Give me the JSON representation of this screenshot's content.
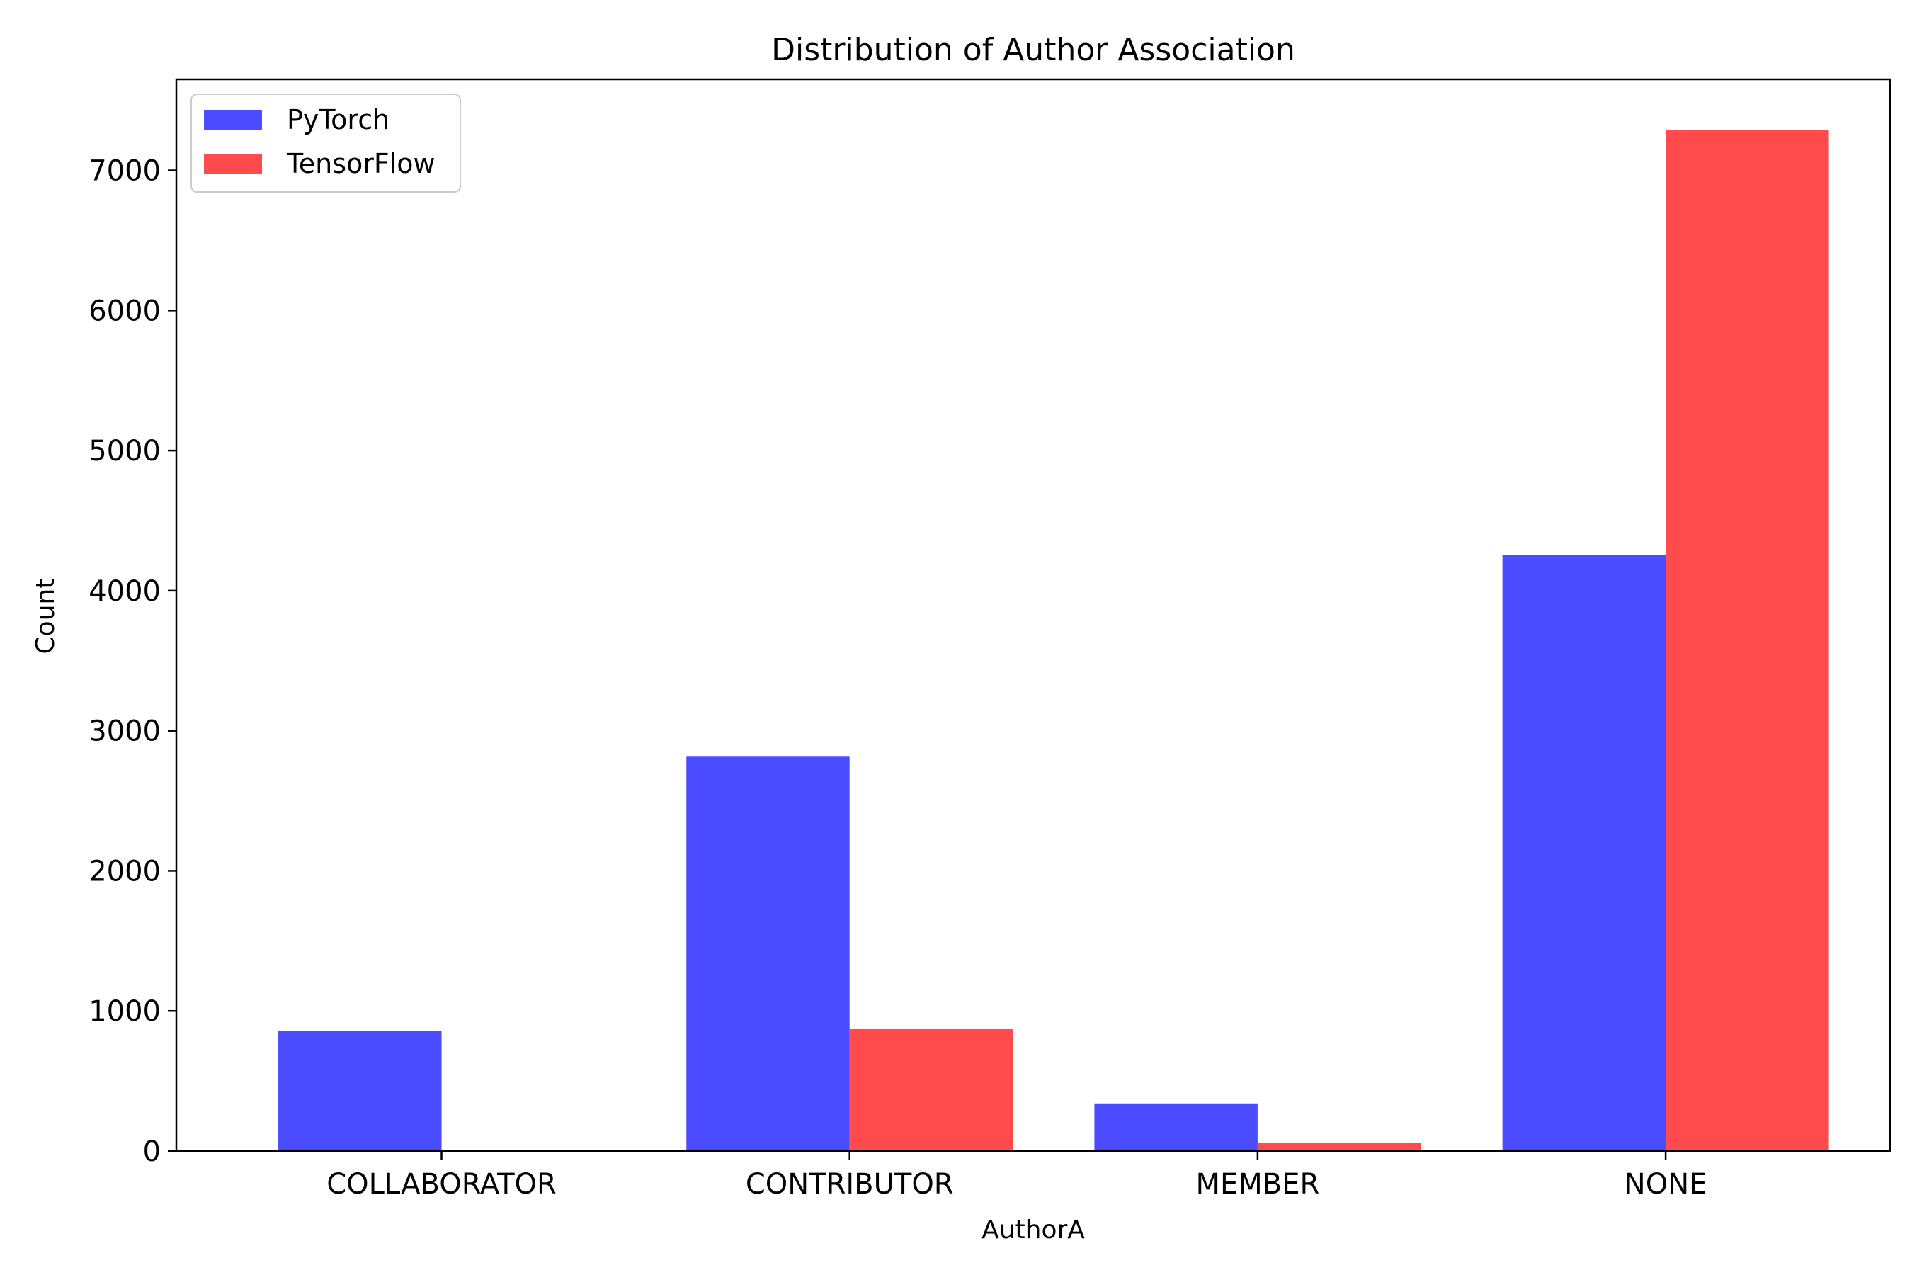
{
  "chart_data": {
    "type": "bar",
    "title": "Distribution of Author Association",
    "xlabel": "AuthorA",
    "ylabel": "Count",
    "categories": [
      "COLLABORATOR",
      "CONTRIBUTOR",
      "MEMBER",
      "NONE"
    ],
    "series": [
      {
        "name": "PyTorch",
        "color": "#4b4bff",
        "values": [
          855,
          2820,
          340,
          4255
        ]
      },
      {
        "name": "TensorFlow",
        "color": "#ff4b4b",
        "values": [
          0,
          870,
          60,
          7290
        ]
      }
    ],
    "ylim": [
      0,
      7650
    ],
    "yticks": [
      0,
      1000,
      2000,
      3000,
      4000,
      5000,
      6000,
      7000
    ],
    "grid": false,
    "legend_position": "top-left"
  }
}
